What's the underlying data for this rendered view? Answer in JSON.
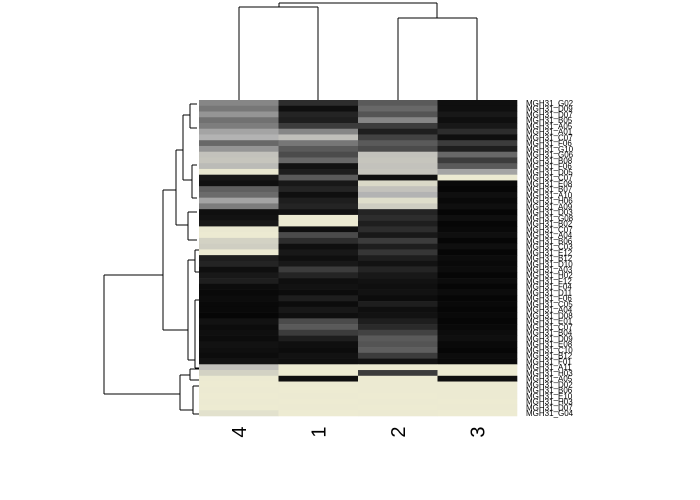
{
  "chart_data": {
    "type": "heatmap",
    "title": "",
    "xlabel": "",
    "ylabel": "",
    "columns": [
      "4",
      "1",
      "2",
      "3"
    ],
    "rows": [
      "MGH31_G02",
      "MGH31_D09",
      "MGH31_D07",
      "MGH31_B05",
      "MGH31_A05",
      "MGH31_A01",
      "MGH31_C07",
      "MGH31_F06",
      "MGH31_G10",
      "MGH31_G06",
      "MGH31_B08",
      "MGH31_F06",
      "MGH31_D05",
      "MGH31_C07",
      "MGH31_E08",
      "MGH31_B07",
      "MGH31_A10",
      "MGH31_H06",
      "MGH31_A09",
      "MGH31_D03",
      "MGH31_G08",
      "MGH31_B02",
      "MGH31_C07",
      "MGH31_A04",
      "MGH31_B06",
      "MGH31_C03",
      "MGH31_E12",
      "MGH31_B12",
      "MGH31_D10",
      "MGH31_A03",
      "MGH31_H02",
      "MGH31_F12",
      "MGH31_F04",
      "MGH31_D11",
      "MGH31_F06",
      "MGH31_C05",
      "MGH31_A04",
      "MGH31_D08",
      "MGH31_E01",
      "MGH31_C07",
      "MGH31_B04",
      "MGH31_D09",
      "MGH31_E08",
      "MGH31_C10",
      "MGH31_B12",
      "MGH31_F01",
      "MGH31_A11",
      "MGH31_H03",
      "MGH31_A05",
      "MGH31_D02",
      "MGH31_B06",
      "MGH31_E10",
      "MGH31_H03",
      "MGH31_D07",
      "MGH31_G04"
    ],
    "values": [
      [
        0.45,
        0.15,
        0.3,
        0.05
      ],
      [
        0.4,
        0.05,
        0.35,
        0.05
      ],
      [
        0.5,
        0.12,
        0.28,
        0.08
      ],
      [
        0.38,
        0.1,
        0.45,
        0.05
      ],
      [
        0.42,
        0.2,
        0.2,
        0.08
      ],
      [
        0.55,
        0.45,
        0.1,
        0.15
      ],
      [
        0.6,
        0.68,
        0.22,
        0.05
      ],
      [
        0.35,
        0.4,
        0.3,
        0.2
      ],
      [
        0.5,
        0.3,
        0.25,
        0.1
      ],
      [
        0.7,
        0.25,
        0.7,
        0.35
      ],
      [
        0.72,
        0.35,
        0.72,
        0.2
      ],
      [
        0.65,
        0.06,
        0.7,
        0.3
      ],
      [
        0.95,
        0.1,
        0.72,
        0.55
      ],
      [
        0.08,
        0.3,
        0.05,
        0.96
      ],
      [
        0.05,
        0.08,
        0.85,
        0.03
      ],
      [
        0.32,
        0.12,
        0.7,
        0.02
      ],
      [
        0.36,
        0.05,
        0.6,
        0.05
      ],
      [
        0.55,
        0.1,
        0.88,
        0.03
      ],
      [
        0.42,
        0.12,
        0.78,
        0.05
      ],
      [
        0.05,
        0.06,
        0.12,
        0.02
      ],
      [
        0.06,
        0.96,
        0.15,
        0.05
      ],
      [
        0.08,
        0.96,
        0.1,
        0.02
      ],
      [
        0.95,
        0.05,
        0.15,
        0.03
      ],
      [
        0.96,
        0.25,
        0.08,
        0.05
      ],
      [
        0.8,
        0.15,
        0.2,
        0.02
      ],
      [
        0.78,
        0.05,
        0.1,
        0.05
      ],
      [
        0.96,
        0.08,
        0.18,
        0.02
      ],
      [
        0.1,
        0.05,
        0.1,
        0.04
      ],
      [
        0.12,
        0.08,
        0.06,
        0.03
      ],
      [
        0.05,
        0.2,
        0.12,
        0.04
      ],
      [
        0.08,
        0.12,
        0.08,
        0.02
      ],
      [
        0.1,
        0.05,
        0.06,
        0.04
      ],
      [
        0.04,
        0.06,
        0.05,
        0.02
      ],
      [
        0.03,
        0.04,
        0.06,
        0.04
      ],
      [
        0.04,
        0.1,
        0.04,
        0.02
      ],
      [
        0.03,
        0.04,
        0.1,
        0.03
      ],
      [
        0.03,
        0.08,
        0.05,
        0.02
      ],
      [
        0.02,
        0.05,
        0.06,
        0.03
      ],
      [
        0.06,
        0.25,
        0.1,
        0.02
      ],
      [
        0.04,
        0.3,
        0.14,
        0.03
      ],
      [
        0.05,
        0.2,
        0.22,
        0.04
      ],
      [
        0.04,
        0.1,
        0.3,
        0.05
      ],
      [
        0.06,
        0.05,
        0.28,
        0.03
      ],
      [
        0.05,
        0.04,
        0.32,
        0.02
      ],
      [
        0.04,
        0.06,
        0.2,
        0.04
      ],
      [
        0.06,
        0.05,
        0.06,
        0.03
      ],
      [
        0.7,
        0.96,
        0.96,
        0.96
      ],
      [
        0.8,
        0.97,
        0.2,
        0.96
      ],
      [
        0.96,
        0.05,
        0.96,
        0.05
      ],
      [
        0.97,
        0.96,
        0.96,
        0.96
      ],
      [
        0.96,
        0.97,
        0.96,
        0.96
      ],
      [
        0.97,
        0.96,
        0.97,
        0.96
      ],
      [
        0.96,
        0.97,
        0.96,
        0.97
      ],
      [
        0.97,
        0.96,
        0.97,
        0.96
      ],
      [
        0.9,
        0.97,
        0.96,
        0.97
      ]
    ],
    "color_scale": {
      "low": "#000000",
      "mid": "#b3b3b3",
      "high": "#f2f0d5"
    },
    "legend": "none",
    "grid": false
  }
}
